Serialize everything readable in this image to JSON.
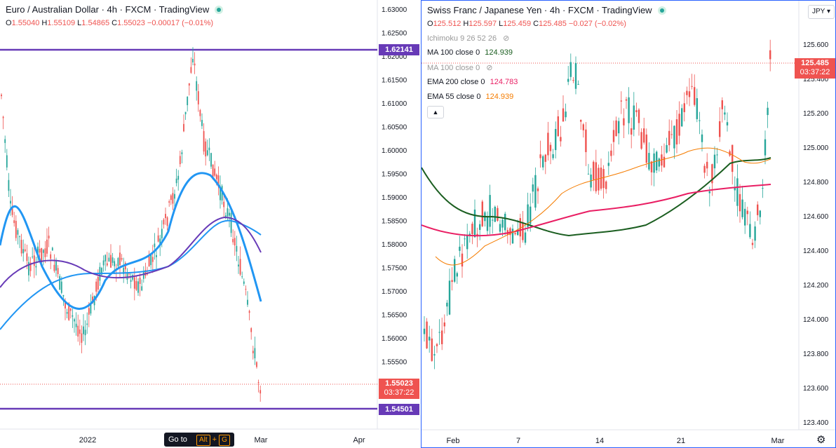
{
  "left": {
    "title": "Euro / Australian Dollar · 4h · FXCM · TradingView",
    "ohlc": {
      "o_label": "O",
      "o": "1.55040",
      "h_label": "H",
      "h": "1.55109",
      "l_label": "L",
      "l": "1.54865",
      "c_label": "C",
      "c": "1.55023",
      "chg": "−0.00017 (−0.01%)"
    },
    "price_axis": [
      "1.63000",
      "1.62500",
      "1.62000",
      "1.61500",
      "1.61000",
      "1.60500",
      "1.60000",
      "1.59500",
      "1.59000",
      "1.58500",
      "1.58000",
      "1.57500",
      "1.57000",
      "1.56500",
      "1.56000",
      "1.55500"
    ],
    "hline_top": "1.62141",
    "hline_bottom": "1.54501",
    "last_price": "1.55023",
    "countdown": "03:37:22",
    "time_axis": [
      "2022",
      "Mar",
      "Apr"
    ],
    "goto": {
      "label": "Go to",
      "key1": "Alt",
      "plus": "+",
      "key2": "G"
    },
    "colors": {
      "hline": "#673ab7",
      "ma_blue": "#2196f3",
      "ma_purple": "#673ab7",
      "up": "#26a69a",
      "down": "#ef5350"
    }
  },
  "right": {
    "title": "Swiss Franc / Japanese Yen · 4h · FXCM · TradingView",
    "ohlc": {
      "o_label": "O",
      "o": "125.512",
      "h_label": "H",
      "h": "125.597",
      "l_label": "L",
      "l": "125.459",
      "c_label": "C",
      "c": "125.485",
      "chg": "−0.027 (−0.02%)"
    },
    "indicators": [
      {
        "name": "Ichimoku 9 26 52 26",
        "value": "",
        "hidden": true,
        "color": "#999999"
      },
      {
        "name": "MA 100 close 0",
        "value": "124.939",
        "hidden": false,
        "color": "#1b5e20"
      },
      {
        "name": "MA 100 close 0",
        "value": "",
        "hidden": true,
        "color": "#999999"
      },
      {
        "name": "EMA 200 close 0",
        "value": "124.783",
        "hidden": false,
        "color": "#e91e63"
      },
      {
        "name": "EMA 55 close 0",
        "value": "124.939",
        "hidden": false,
        "color": "#f57c00"
      }
    ],
    "currency_button": "JPY",
    "price_axis": [
      "125.600",
      "125.400",
      "125.200",
      "125.000",
      "124.800",
      "124.600",
      "124.400",
      "124.200",
      "124.000",
      "123.800",
      "123.600",
      "123.400"
    ],
    "last_price": "125.485",
    "countdown": "03:37:22",
    "time_axis": [
      "Feb",
      "7",
      "14",
      "21",
      "Mar"
    ],
    "colors": {
      "ma100": "#1b5e20",
      "ema200": "#e91e63",
      "ema55": "#f57c00",
      "up": "#26a69a",
      "down": "#ef5350"
    }
  }
}
